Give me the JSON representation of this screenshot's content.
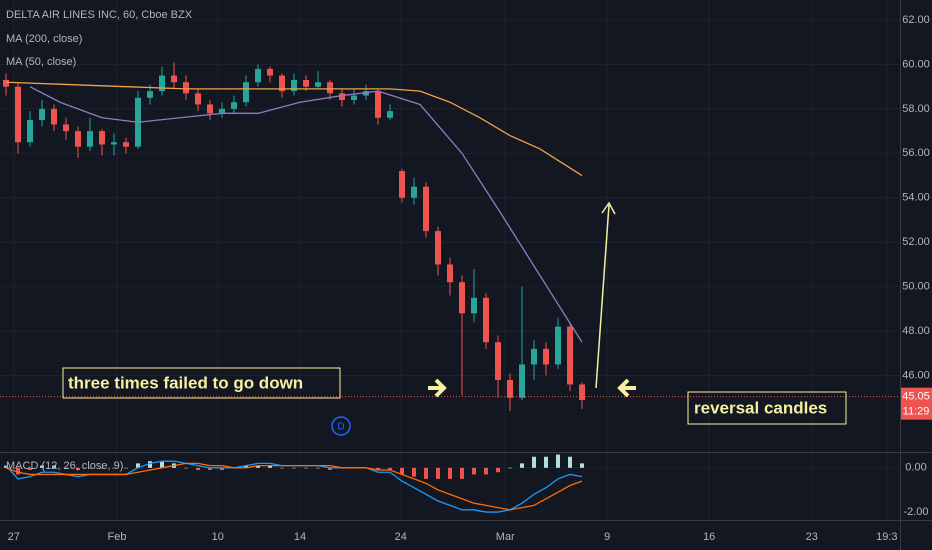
{
  "chart_data": [
    {
      "type": "candlestick",
      "title": "DELTA AIR LINES INC, 60, Cboe BZX",
      "x": [
        1,
        3,
        5,
        7,
        9,
        11,
        13,
        15,
        17,
        19,
        21,
        23,
        25,
        27,
        29,
        31,
        33,
        35,
        37,
        39,
        41,
        43,
        45,
        47,
        49,
        51,
        53,
        55,
        57,
        59,
        61,
        63,
        65,
        67,
        69,
        71,
        73,
        75,
        77,
        79,
        81,
        83,
        85,
        87,
        89,
        91,
        93,
        95,
        97
      ],
      "open": [
        59.3,
        59.0,
        56.5,
        57.5,
        58.0,
        57.3,
        57.0,
        56.3,
        57.0,
        56.4,
        56.5,
        56.3,
        58.5,
        58.8,
        59.5,
        59.2,
        58.7,
        58.2,
        57.8,
        58.0,
        58.3,
        59.2,
        59.8,
        59.5,
        58.8,
        59.3,
        59.0,
        59.2,
        58.7,
        58.4,
        58.6,
        58.8,
        57.6,
        55.2,
        54.0,
        54.5,
        52.5,
        51.0,
        50.2,
        48.8,
        49.5,
        47.5,
        45.8,
        45.0,
        46.5,
        47.2,
        46.5,
        48.2,
        45.6
      ],
      "high": [
        59.6,
        59.2,
        57.9,
        58.4,
        58.2,
        57.6,
        57.2,
        57.6,
        57.1,
        56.9,
        56.7,
        58.8,
        59.1,
        59.9,
        60.1,
        59.5,
        58.9,
        58.4,
        58.3,
        58.6,
        59.5,
        60.0,
        59.9,
        59.6,
        59.6,
        59.5,
        59.7,
        59.3,
        58.9,
        58.9,
        59.1,
        58.9,
        58.2,
        55.3,
        54.9,
        54.7,
        52.7,
        51.3,
        50.5,
        50.8,
        49.7,
        47.8,
        46.1,
        50.0,
        47.6,
        47.5,
        48.6,
        48.3,
        45.7
      ],
      "low": [
        58.6,
        56.0,
        56.3,
        57.2,
        57.0,
        56.6,
        55.8,
        56.1,
        55.9,
        55.9,
        56.0,
        56.2,
        58.2,
        58.6,
        58.9,
        58.4,
        57.9,
        57.5,
        57.6,
        57.8,
        58.1,
        59.0,
        59.2,
        58.5,
        58.6,
        58.8,
        58.9,
        58.4,
        58.1,
        58.2,
        58.4,
        57.3,
        57.5,
        53.8,
        53.7,
        52.2,
        50.5,
        49.6,
        45.1,
        48.4,
        47.2,
        45.0,
        44.4,
        44.9,
        45.8,
        46.0,
        46.3,
        45.3,
        44.5
      ],
      "close": [
        59.0,
        56.5,
        57.5,
        58.0,
        57.3,
        57.0,
        56.3,
        57.0,
        56.4,
        56.5,
        56.3,
        58.5,
        58.8,
        59.5,
        59.2,
        58.7,
        58.2,
        57.8,
        58.0,
        58.3,
        59.2,
        59.8,
        59.5,
        58.8,
        59.3,
        59.0,
        59.2,
        58.7,
        58.4,
        58.6,
        58.8,
        57.6,
        57.9,
        54.0,
        54.5,
        52.5,
        51.0,
        50.2,
        48.8,
        49.5,
        47.5,
        45.8,
        45.0,
        46.5,
        47.2,
        46.5,
        48.2,
        45.6,
        44.9
      ],
      "up_color": "#26a69a",
      "down_color": "#ef5350",
      "series": [
        {
          "name": "MA (200, close)",
          "color": "#f0a04b",
          "x": [
            1,
            11,
            21,
            31,
            41,
            51,
            61,
            65,
            70,
            75,
            80,
            85,
            90,
            97
          ],
          "values": [
            59.2,
            59.1,
            59.0,
            58.9,
            58.9,
            58.9,
            58.9,
            58.9,
            58.8,
            58.3,
            57.6,
            56.8,
            56.2,
            55.0
          ]
        },
        {
          "name": "MA (50, close)",
          "color": "#8e7cc3",
          "x": [
            5,
            10,
            17,
            23,
            30,
            37,
            43,
            50,
            57,
            63,
            70,
            77,
            83,
            90,
            97
          ],
          "values": [
            59.0,
            58.3,
            57.6,
            57.4,
            57.6,
            57.8,
            57.8,
            58.3,
            58.6,
            58.8,
            58.2,
            56.0,
            53.5,
            50.5,
            47.5
          ]
        }
      ],
      "ylim": [
        42.56,
        62.9
      ],
      "yticks": [
        {
          "value": 62,
          "label": "62.00"
        },
        {
          "value": 60,
          "label": "60.00"
        },
        {
          "value": 58,
          "label": "58.00"
        },
        {
          "value": 56,
          "label": "56.00"
        },
        {
          "value": 54,
          "label": "54.00"
        },
        {
          "value": 52,
          "label": "52.00"
        },
        {
          "value": 50,
          "label": "50.00"
        },
        {
          "value": 48,
          "label": "48.00"
        },
        {
          "value": 46,
          "label": "46.00"
        }
      ],
      "xlim": [
        0,
        150
      ],
      "xticks": [
        {
          "value": 2.3,
          "label": "27"
        },
        {
          "value": 19.5,
          "label": "Feb"
        },
        {
          "value": 36.3,
          "label": "10"
        },
        {
          "value": 50,
          "label": "14"
        },
        {
          "value": 66.8,
          "label": "24"
        },
        {
          "value": 84.2,
          "label": "Mar"
        },
        {
          "value": 101.2,
          "label": "9"
        },
        {
          "value": 118.2,
          "label": "16"
        },
        {
          "value": 135.3,
          "label": "23"
        },
        {
          "value": 147.8,
          "label": "19:3"
        }
      ],
      "last_price": {
        "value": 45.05,
        "label": "45.05",
        "time_label": "11:29",
        "color": "#ef5350"
      },
      "annotations": [
        "three times failed to go down",
        "reversal candles"
      ],
      "marker": "D"
    },
    {
      "type": "macd",
      "title": "MACD (12, 26, close, 9)",
      "x": [
        1,
        3,
        5,
        7,
        9,
        11,
        13,
        15,
        17,
        19,
        21,
        23,
        25,
        27,
        29,
        31,
        33,
        35,
        37,
        39,
        41,
        43,
        45,
        47,
        49,
        51,
        53,
        55,
        57,
        59,
        61,
        63,
        65,
        67,
        69,
        71,
        73,
        75,
        77,
        79,
        81,
        83,
        85,
        87,
        89,
        91,
        93,
        95,
        97
      ],
      "macd": [
        0.1,
        -0.5,
        -0.4,
        -0.2,
        -0.2,
        -0.3,
        -0.4,
        -0.3,
        -0.3,
        -0.3,
        -0.3,
        0.0,
        0.2,
        0.3,
        0.3,
        0.2,
        0.1,
        0.0,
        0.0,
        0.0,
        0.1,
        0.2,
        0.2,
        0.1,
        0.1,
        0.1,
        0.1,
        0.0,
        0.0,
        0.0,
        0.0,
        -0.2,
        -0.2,
        -0.6,
        -0.9,
        -1.2,
        -1.5,
        -1.7,
        -1.9,
        -1.9,
        -2.0,
        -2.0,
        -1.9,
        -1.6,
        -1.2,
        -0.9,
        -0.5,
        -0.3,
        -0.4
      ],
      "signal": [
        0.0,
        -0.2,
        -0.3,
        -0.3,
        -0.3,
        -0.3,
        -0.3,
        -0.3,
        -0.3,
        -0.3,
        -0.3,
        -0.2,
        -0.1,
        0.0,
        0.1,
        0.2,
        0.2,
        0.1,
        0.1,
        0.0,
        0.0,
        0.1,
        0.1,
        0.1,
        0.1,
        0.1,
        0.1,
        0.1,
        0.0,
        0.0,
        0.0,
        -0.1,
        -0.1,
        -0.3,
        -0.5,
        -0.7,
        -1.0,
        -1.2,
        -1.4,
        -1.6,
        -1.7,
        -1.8,
        -1.9,
        -1.8,
        -1.7,
        -1.4,
        -1.1,
        -0.8,
        -0.6
      ],
      "histogram": [
        0.1,
        -0.3,
        -0.1,
        0.1,
        0.1,
        0.0,
        -0.1,
        0.0,
        0.0,
        0.0,
        0.0,
        0.2,
        0.3,
        0.3,
        0.2,
        0.0,
        -0.1,
        -0.1,
        -0.1,
        0.0,
        0.1,
        0.1,
        0.1,
        0.0,
        0.0,
        0.0,
        0.0,
        -0.1,
        0.0,
        0.0,
        0.0,
        -0.1,
        -0.1,
        -0.3,
        -0.4,
        -0.5,
        -0.5,
        -0.5,
        -0.5,
        -0.3,
        -0.3,
        -0.2,
        0.0,
        0.2,
        0.5,
        0.5,
        0.6,
        0.5,
        0.2
      ],
      "macd_color": "#2196f3",
      "signal_color": "#ff6d00",
      "hist_up_color": "#b2dfdb",
      "hist_down_color": "#ef5350",
      "ylim": [
        -2.36,
        0.67
      ],
      "yticks": [
        {
          "value": 0,
          "label": "0.00"
        },
        {
          "value": -2,
          "label": "-2.00"
        }
      ]
    }
  ]
}
